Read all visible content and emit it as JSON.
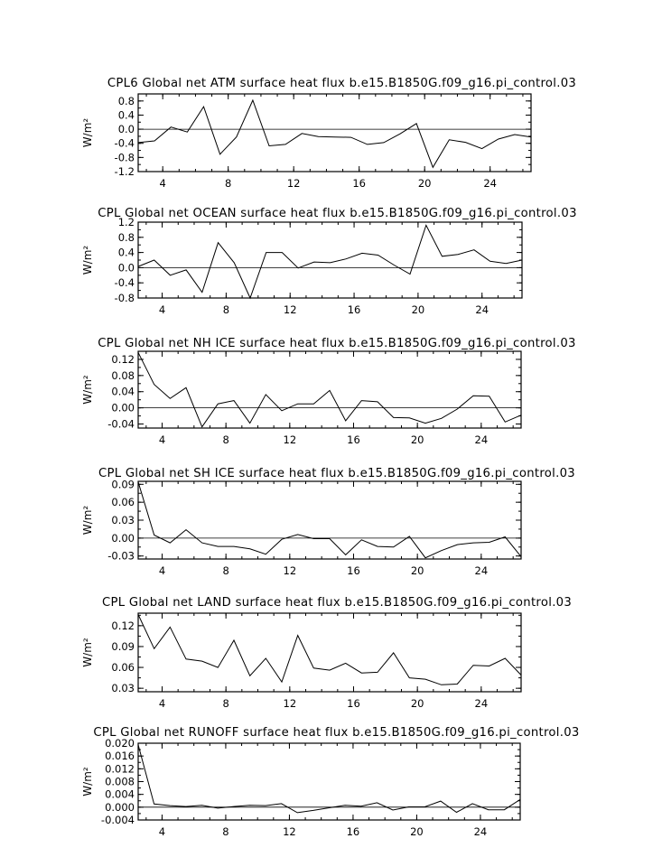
{
  "chart_data": [
    {
      "type": "line",
      "title": "CPL6 Global net ATM surface heat flux b.e15.B1850G.f09_g16.pi_control.03",
      "ylabel": "W/m²",
      "xlim": [
        2.5,
        26.5
      ],
      "ylim": [
        -1.2,
        1.0
      ],
      "yticks": [
        "0.8",
        "0.4",
        "0.0",
        "-0.4",
        "-0.8",
        "-1.2"
      ],
      "xticks": [
        "4",
        "8",
        "12",
        "16",
        "20",
        "24"
      ],
      "zero_line": true,
      "x": [
        2.5,
        3.5,
        4.5,
        5.5,
        6.5,
        7.5,
        8.5,
        9.5,
        10.5,
        11.5,
        12.5,
        13.5,
        14.5,
        15.5,
        16.5,
        17.5,
        18.5,
        19.5,
        20.5,
        21.5,
        22.5,
        23.5,
        24.5,
        25.5,
        26.5
      ],
      "series": [
        {
          "values": [
            -0.38,
            -0.33,
            0.06,
            -0.08,
            0.64,
            -0.71,
            -0.22,
            0.82,
            -0.47,
            -0.43,
            -0.12,
            -0.21,
            -0.22,
            -0.23,
            -0.43,
            -0.38,
            -0.13,
            0.16,
            -1.08,
            -0.3,
            -0.37,
            -0.55,
            -0.28,
            -0.15,
            -0.22
          ]
        }
      ]
    },
    {
      "type": "line",
      "title": "CPL Global net OCEAN surface heat flux b.e15.B1850G.f09_g16.pi_control.03",
      "ylabel": "W/m²",
      "xlim": [
        2.5,
        26.5
      ],
      "ylim": [
        -0.8,
        1.2
      ],
      "yticks": [
        "1.2",
        "0.8",
        "0.4",
        "0.0",
        "-0.4",
        "-0.8"
      ],
      "xticks": [
        "4",
        "8",
        "12",
        "16",
        "20",
        "24"
      ],
      "zero_line": true,
      "x": [
        2.5,
        3.5,
        4.5,
        5.5,
        6.5,
        7.5,
        8.5,
        9.5,
        10.5,
        11.5,
        12.5,
        13.5,
        14.5,
        15.5,
        16.5,
        17.5,
        18.5,
        19.5,
        20.5,
        21.5,
        22.5,
        23.5,
        24.5,
        25.5,
        26.5
      ],
      "series": [
        {
          "values": [
            0.03,
            0.2,
            -0.2,
            -0.06,
            -0.65,
            0.66,
            0.13,
            -0.8,
            0.4,
            0.4,
            -0.01,
            0.15,
            0.13,
            0.23,
            0.38,
            0.33,
            0.07,
            -0.17,
            1.12,
            0.3,
            0.35,
            0.47,
            0.17,
            0.11,
            0.2
          ]
        }
      ]
    },
    {
      "type": "line",
      "title": "CPL Global net NH ICE surface heat flux b.e15.B1850G.f09_g16.pi_control.03",
      "ylabel": "W/m²",
      "xlim": [
        2.5,
        26.5
      ],
      "ylim": [
        -0.05,
        0.14
      ],
      "yticks": [
        "0.12",
        "0.08",
        "0.04",
        "0.00",
        "-0.04"
      ],
      "xticks": [
        "4",
        "8",
        "12",
        "16",
        "20",
        "24"
      ],
      "zero_line": true,
      "x": [
        2.5,
        3.5,
        4.5,
        5.5,
        6.5,
        7.5,
        8.5,
        9.5,
        10.5,
        11.5,
        12.5,
        13.5,
        14.5,
        15.5,
        16.5,
        17.5,
        18.5,
        19.5,
        20.5,
        21.5,
        22.5,
        23.5,
        24.5,
        25.5,
        26.5
      ],
      "series": [
        {
          "values": [
            0.137,
            0.058,
            0.023,
            0.05,
            -0.047,
            0.01,
            0.018,
            -0.038,
            0.033,
            -0.007,
            0.01,
            0.01,
            0.043,
            -0.032,
            0.018,
            0.015,
            -0.024,
            -0.025,
            -0.038,
            -0.026,
            -0.003,
            0.03,
            0.029,
            -0.035,
            -0.018
          ]
        }
      ]
    },
    {
      "type": "line",
      "title": "CPL Global net SH ICE surface heat flux b.e15.B1850G.f09_g16.pi_control.03",
      "ylabel": "W/m²",
      "xlim": [
        2.5,
        26.5
      ],
      "ylim": [
        -0.035,
        0.095
      ],
      "yticks": [
        "0.09",
        "0.06",
        "0.03",
        "0.00",
        "-0.03"
      ],
      "xticks": [
        "4",
        "8",
        "12",
        "16",
        "20",
        "24"
      ],
      "zero_line": true,
      "x": [
        2.5,
        3.5,
        4.5,
        5.5,
        6.5,
        7.5,
        8.5,
        9.5,
        10.5,
        11.5,
        12.5,
        13.5,
        14.5,
        15.5,
        16.5,
        17.5,
        18.5,
        19.5,
        20.5,
        21.5,
        22.5,
        23.5,
        24.5,
        25.5,
        26.5
      ],
      "series": [
        {
          "values": [
            0.094,
            0.005,
            -0.008,
            0.014,
            -0.008,
            -0.014,
            -0.014,
            -0.018,
            -0.027,
            -0.002,
            0.006,
            -0.001,
            -0.001,
            -0.028,
            -0.003,
            -0.014,
            -0.015,
            0.003,
            -0.033,
            -0.021,
            -0.011,
            -0.008,
            -0.007,
            0.002,
            -0.031
          ]
        }
      ]
    },
    {
      "type": "line",
      "title": "CPL Global net LAND surface heat flux b.e15.B1850G.f09_g16.pi_control.03",
      "ylabel": "W/m²",
      "xlim": [
        2.5,
        26.5
      ],
      "ylim": [
        0.025,
        0.138
      ],
      "yticks": [
        "0.12",
        "0.09",
        "0.06",
        "0.03"
      ],
      "xticks": [
        "4",
        "8",
        "12",
        "16",
        "20",
        "24"
      ],
      "zero_line": false,
      "x": [
        2.5,
        3.5,
        4.5,
        5.5,
        6.5,
        7.5,
        8.5,
        9.5,
        10.5,
        11.5,
        12.5,
        13.5,
        14.5,
        15.5,
        16.5,
        17.5,
        18.5,
        19.5,
        20.5,
        21.5,
        22.5,
        23.5,
        24.5,
        25.5,
        26.5
      ],
      "series": [
        {
          "values": [
            0.136,
            0.087,
            0.118,
            0.072,
            0.069,
            0.06,
            0.099,
            0.048,
            0.073,
            0.039,
            0.106,
            0.059,
            0.056,
            0.066,
            0.052,
            0.053,
            0.081,
            0.045,
            0.043,
            0.035,
            0.036,
            0.063,
            0.062,
            0.073,
            0.049
          ]
        }
      ]
    },
    {
      "type": "line",
      "title": "CPL Global net RUNOFF surface heat flux b.e15.B1850G.f09_g16.pi_control.03",
      "ylabel": "W/m²",
      "xlim": [
        2.5,
        26.5
      ],
      "ylim": [
        -0.004,
        0.02
      ],
      "yticks": [
        "0.020",
        "0.016",
        "0.012",
        "0.008",
        "0.004",
        "0.000",
        "-0.004"
      ],
      "xticks": [
        "4",
        "8",
        "12",
        "16",
        "20",
        "24"
      ],
      "zero_line": true,
      "x": [
        2.5,
        3.5,
        4.5,
        5.5,
        6.5,
        7.5,
        8.5,
        9.5,
        10.5,
        11.5,
        12.5,
        13.5,
        14.5,
        15.5,
        16.5,
        17.5,
        18.5,
        19.5,
        20.5,
        21.5,
        22.5,
        23.5,
        24.5,
        25.5,
        26.5
      ],
      "series": [
        {
          "values": [
            0.0195,
            0.001,
            0.0005,
            0.0002,
            0.0006,
            -0.0003,
            0.0002,
            0.0006,
            0.0005,
            0.0011,
            -0.0017,
            -0.001,
            -0.0002,
            0.0006,
            0.0003,
            0.0014,
            -0.0009,
            0.0001,
            0.0001,
            0.0019,
            -0.0016,
            0.0011,
            -0.0008,
            -0.0008,
            0.0024
          ]
        }
      ]
    }
  ]
}
